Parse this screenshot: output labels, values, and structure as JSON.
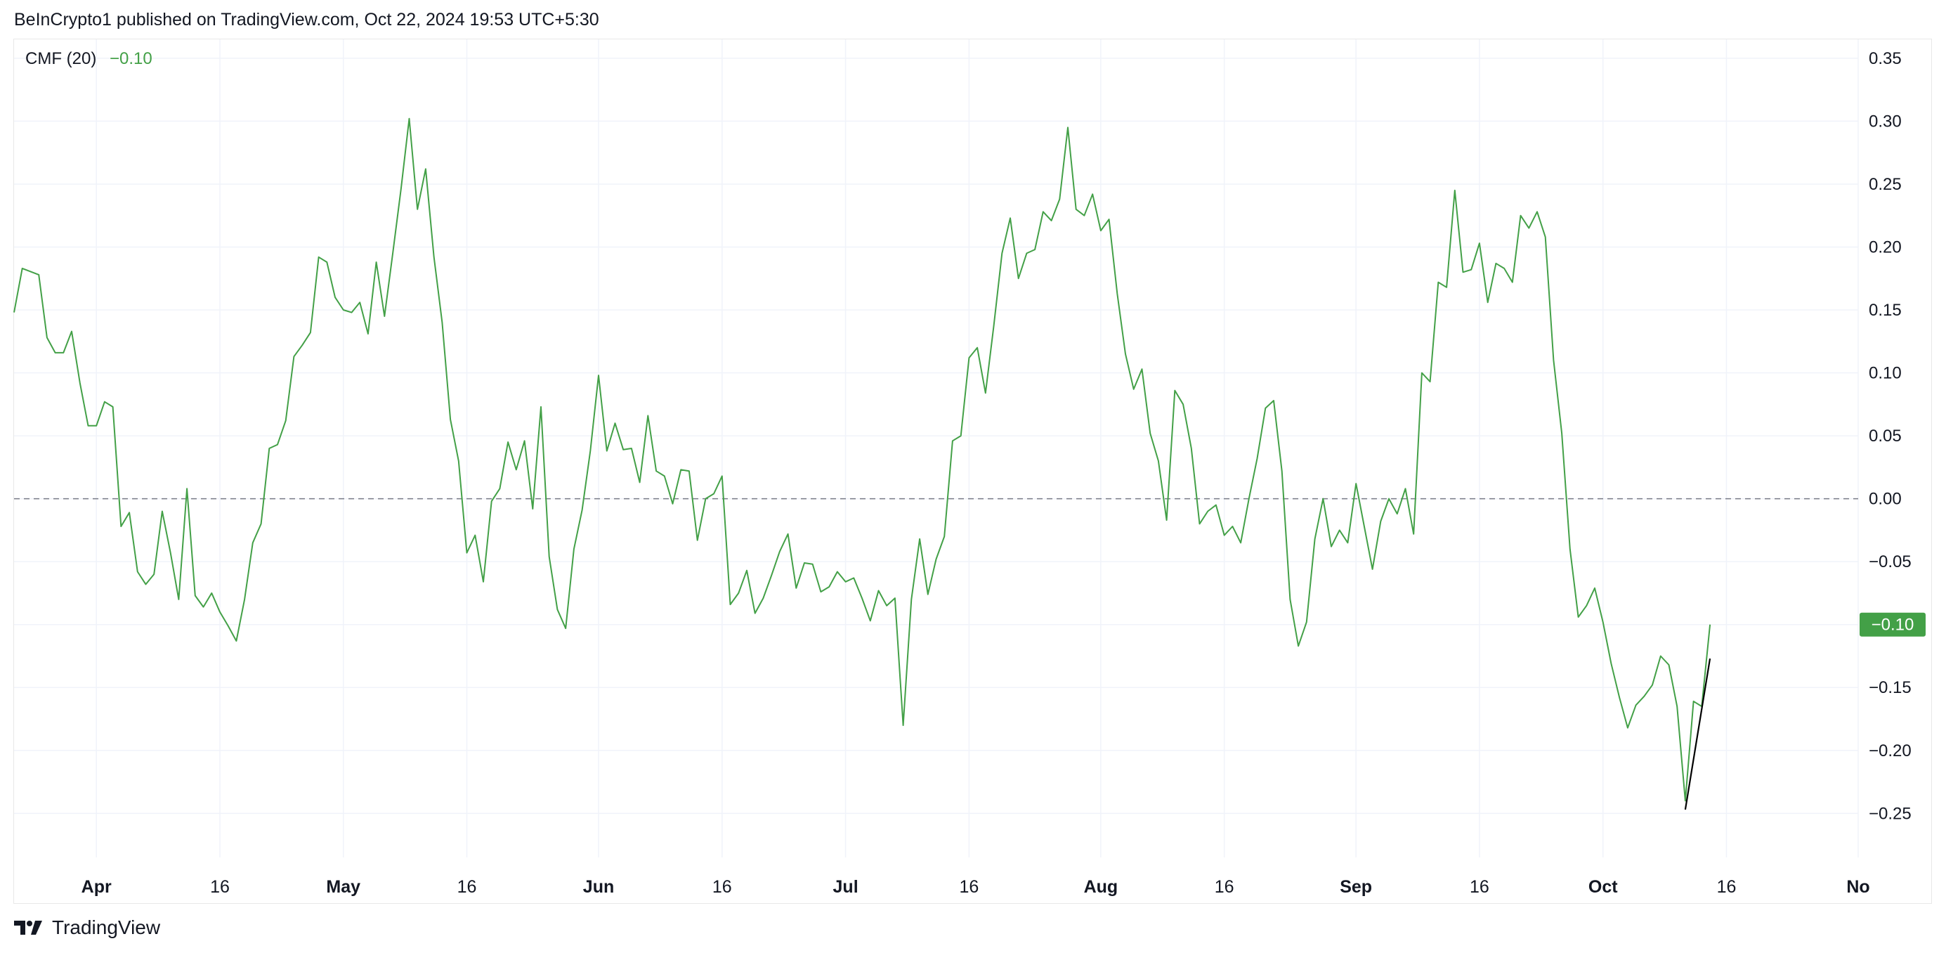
{
  "header": {
    "published": "BeInCrypto1 published on TradingView.com, Oct 22, 2024 19:53 UTC+5:30"
  },
  "legend": {
    "name": "CMF (20)",
    "value": "−0.10"
  },
  "footer": {
    "brand": "TradingView",
    "logo_icon": "tradingview-logo-icon"
  },
  "colors": {
    "series": "#43a047",
    "badge": "#43a047",
    "trendline": "#000000",
    "zero_line": "#787b86",
    "grid": "#f0f3fa"
  },
  "chart_data": {
    "type": "line",
    "title": "",
    "indicator": "CMF (20)",
    "last_value_label": "−0.10",
    "y_ticks": [
      "0.35",
      "0.30",
      "0.25",
      "0.20",
      "0.15",
      "0.10",
      "0.05",
      "0.00",
      "−0.05",
      "−0.10",
      "−0.15",
      "−0.20",
      "−0.25"
    ],
    "y_tick_values": [
      0.35,
      0.3,
      0.25,
      0.2,
      0.15,
      0.1,
      0.05,
      0.0,
      -0.05,
      -0.1,
      -0.15,
      -0.2,
      -0.25
    ],
    "ylim": [
      -0.285,
      0.365
    ],
    "x_ticks": [
      {
        "label": "Apr",
        "date": "2024-04-01",
        "major": true
      },
      {
        "label": "16",
        "date": "2024-04-16",
        "major": false
      },
      {
        "label": "May",
        "date": "2024-05-01",
        "major": true
      },
      {
        "label": "16",
        "date": "2024-05-16",
        "major": false
      },
      {
        "label": "Jun",
        "date": "2024-06-01",
        "major": true
      },
      {
        "label": "16",
        "date": "2024-06-16",
        "major": false
      },
      {
        "label": "Jul",
        "date": "2024-07-01",
        "major": true
      },
      {
        "label": "16",
        "date": "2024-07-16",
        "major": false
      },
      {
        "label": "Aug",
        "date": "2024-08-01",
        "major": true
      },
      {
        "label": "16",
        "date": "2024-08-16",
        "major": false
      },
      {
        "label": "Sep",
        "date": "2024-09-01",
        "major": true
      },
      {
        "label": "16",
        "date": "2024-09-16",
        "major": false
      },
      {
        "label": "Oct",
        "date": "2024-10-01",
        "major": true
      },
      {
        "label": "16",
        "date": "2024-10-16",
        "major": false
      },
      {
        "label": "No",
        "date": "2024-11-01",
        "major": true
      }
    ],
    "xlim": [
      "2024-03-22",
      "2024-11-01"
    ],
    "zero_line": 0.0,
    "series": [
      {
        "values": [
          [
            "2024-03-22",
            0.148
          ],
          [
            "2024-03-23",
            0.183
          ],
          [
            "2024-03-25",
            0.178
          ],
          [
            "2024-03-26",
            0.128
          ],
          [
            "2024-03-27",
            0.116
          ],
          [
            "2024-03-28",
            0.116
          ],
          [
            "2024-03-29",
            0.133
          ],
          [
            "2024-03-30",
            0.092
          ],
          [
            "2024-03-31",
            0.058
          ],
          [
            "2024-04-01",
            0.058
          ],
          [
            "2024-04-02",
            0.077
          ],
          [
            "2024-04-03",
            0.073
          ],
          [
            "2024-04-04",
            -0.022
          ],
          [
            "2024-04-05",
            -0.011
          ],
          [
            "2024-04-06",
            -0.058
          ],
          [
            "2024-04-07",
            -0.068
          ],
          [
            "2024-04-08",
            -0.06
          ],
          [
            "2024-04-09",
            -0.01
          ],
          [
            "2024-04-10",
            -0.043
          ],
          [
            "2024-04-11",
            -0.08
          ],
          [
            "2024-04-12",
            0.008
          ],
          [
            "2024-04-13",
            -0.077
          ],
          [
            "2024-04-14",
            -0.086
          ],
          [
            "2024-04-15",
            -0.075
          ],
          [
            "2024-04-16",
            -0.09
          ],
          [
            "2024-04-17",
            -0.101
          ],
          [
            "2024-04-18",
            -0.113
          ],
          [
            "2024-04-19",
            -0.08
          ],
          [
            "2024-04-20",
            -0.035
          ],
          [
            "2024-04-21",
            -0.02
          ],
          [
            "2024-04-22",
            0.04
          ],
          [
            "2024-04-23",
            0.043
          ],
          [
            "2024-04-24",
            0.062
          ],
          [
            "2024-04-25",
            0.113
          ],
          [
            "2024-04-26",
            0.122
          ],
          [
            "2024-04-27",
            0.132
          ],
          [
            "2024-04-28",
            0.192
          ],
          [
            "2024-04-29",
            0.188
          ],
          [
            "2024-04-30",
            0.16
          ],
          [
            "2024-05-01",
            0.15
          ],
          [
            "2024-05-02",
            0.148
          ],
          [
            "2024-05-03",
            0.156
          ],
          [
            "2024-05-04",
            0.131
          ],
          [
            "2024-05-05",
            0.188
          ],
          [
            "2024-05-06",
            0.145
          ],
          [
            "2024-05-07",
            0.195
          ],
          [
            "2024-05-08",
            0.246
          ],
          [
            "2024-05-09",
            0.302
          ],
          [
            "2024-05-10",
            0.23
          ],
          [
            "2024-05-11",
            0.262
          ],
          [
            "2024-05-12",
            0.192
          ],
          [
            "2024-05-13",
            0.14
          ],
          [
            "2024-05-14",
            0.063
          ],
          [
            "2024-05-15",
            0.03
          ],
          [
            "2024-05-16",
            -0.043
          ],
          [
            "2024-05-17",
            -0.029
          ],
          [
            "2024-05-18",
            -0.066
          ],
          [
            "2024-05-19",
            -0.002
          ],
          [
            "2024-05-20",
            0.008
          ],
          [
            "2024-05-21",
            0.045
          ],
          [
            "2024-05-22",
            0.023
          ],
          [
            "2024-05-23",
            0.046
          ],
          [
            "2024-05-24",
            -0.008
          ],
          [
            "2024-05-25",
            0.073
          ],
          [
            "2024-05-26",
            -0.046
          ],
          [
            "2024-05-27",
            -0.088
          ],
          [
            "2024-05-28",
            -0.103
          ],
          [
            "2024-05-29",
            -0.04
          ],
          [
            "2024-05-30",
            -0.009
          ],
          [
            "2024-05-31",
            0.038
          ],
          [
            "2024-06-01",
            0.098
          ],
          [
            "2024-06-02",
            0.038
          ],
          [
            "2024-06-03",
            0.06
          ],
          [
            "2024-06-04",
            0.039
          ],
          [
            "2024-06-05",
            0.04
          ],
          [
            "2024-06-06",
            0.013
          ],
          [
            "2024-06-07",
            0.066
          ],
          [
            "2024-06-08",
            0.022
          ],
          [
            "2024-06-09",
            0.018
          ],
          [
            "2024-06-10",
            -0.004
          ],
          [
            "2024-06-11",
            0.023
          ],
          [
            "2024-06-12",
            0.022
          ],
          [
            "2024-06-13",
            -0.033
          ],
          [
            "2024-06-14",
            0.0
          ],
          [
            "2024-06-15",
            0.004
          ],
          [
            "2024-06-16",
            0.018
          ],
          [
            "2024-06-17",
            -0.084
          ],
          [
            "2024-06-18",
            -0.075
          ],
          [
            "2024-06-19",
            -0.057
          ],
          [
            "2024-06-20",
            -0.091
          ],
          [
            "2024-06-21",
            -0.079
          ],
          [
            "2024-06-22",
            -0.061
          ],
          [
            "2024-06-23",
            -0.042
          ],
          [
            "2024-06-24",
            -0.028
          ],
          [
            "2024-06-25",
            -0.071
          ],
          [
            "2024-06-26",
            -0.051
          ],
          [
            "2024-06-27",
            -0.052
          ],
          [
            "2024-06-28",
            -0.074
          ],
          [
            "2024-06-29",
            -0.07
          ],
          [
            "2024-06-30",
            -0.058
          ],
          [
            "2024-07-01",
            -0.066
          ],
          [
            "2024-07-02",
            -0.063
          ],
          [
            "2024-07-03",
            -0.079
          ],
          [
            "2024-07-04",
            -0.097
          ],
          [
            "2024-07-05",
            -0.073
          ],
          [
            "2024-07-06",
            -0.085
          ],
          [
            "2024-07-07",
            -0.079
          ],
          [
            "2024-07-08",
            -0.18
          ],
          [
            "2024-07-09",
            -0.08
          ],
          [
            "2024-07-10",
            -0.032
          ],
          [
            "2024-07-11",
            -0.076
          ],
          [
            "2024-07-12",
            -0.048
          ],
          [
            "2024-07-13",
            -0.03
          ],
          [
            "2024-07-14",
            0.046
          ],
          [
            "2024-07-15",
            0.05
          ],
          [
            "2024-07-16",
            0.112
          ],
          [
            "2024-07-17",
            0.12
          ],
          [
            "2024-07-18",
            0.084
          ],
          [
            "2024-07-19",
            0.137
          ],
          [
            "2024-07-20",
            0.195
          ],
          [
            "2024-07-21",
            0.223
          ],
          [
            "2024-07-22",
            0.175
          ],
          [
            "2024-07-23",
            0.195
          ],
          [
            "2024-07-24",
            0.198
          ],
          [
            "2024-07-25",
            0.228
          ],
          [
            "2024-07-26",
            0.221
          ],
          [
            "2024-07-27",
            0.238
          ],
          [
            "2024-07-28",
            0.295
          ],
          [
            "2024-07-29",
            0.23
          ],
          [
            "2024-07-30",
            0.225
          ],
          [
            "2024-07-31",
            0.242
          ],
          [
            "2024-08-01",
            0.213
          ],
          [
            "2024-08-02",
            0.222
          ],
          [
            "2024-08-03",
            0.163
          ],
          [
            "2024-08-04",
            0.115
          ],
          [
            "2024-08-05",
            0.087
          ],
          [
            "2024-08-06",
            0.103
          ],
          [
            "2024-08-07",
            0.052
          ],
          [
            "2024-08-08",
            0.03
          ],
          [
            "2024-08-09",
            -0.017
          ],
          [
            "2024-08-10",
            0.086
          ],
          [
            "2024-08-11",
            0.075
          ],
          [
            "2024-08-12",
            0.04
          ],
          [
            "2024-08-13",
            -0.02
          ],
          [
            "2024-08-14",
            -0.01
          ],
          [
            "2024-08-15",
            -0.005
          ],
          [
            "2024-08-16",
            -0.029
          ],
          [
            "2024-08-17",
            -0.022
          ],
          [
            "2024-08-18",
            -0.035
          ],
          [
            "2024-08-19",
            0.0
          ],
          [
            "2024-08-20",
            0.032
          ],
          [
            "2024-08-21",
            0.072
          ],
          [
            "2024-08-22",
            0.078
          ],
          [
            "2024-08-23",
            0.022
          ],
          [
            "2024-08-24",
            -0.08
          ],
          [
            "2024-08-25",
            -0.117
          ],
          [
            "2024-08-26",
            -0.098
          ],
          [
            "2024-08-27",
            -0.032
          ],
          [
            "2024-08-28",
            0.0
          ],
          [
            "2024-08-29",
            -0.038
          ],
          [
            "2024-08-30",
            -0.025
          ],
          [
            "2024-08-31",
            -0.035
          ],
          [
            "2024-09-01",
            0.012
          ],
          [
            "2024-09-02",
            -0.022
          ],
          [
            "2024-09-03",
            -0.056
          ],
          [
            "2024-09-04",
            -0.018
          ],
          [
            "2024-09-05",
            0.0
          ],
          [
            "2024-09-06",
            -0.012
          ],
          [
            "2024-09-07",
            0.008
          ],
          [
            "2024-09-08",
            -0.028
          ],
          [
            "2024-09-09",
            0.1
          ],
          [
            "2024-09-10",
            0.093
          ],
          [
            "2024-09-11",
            0.172
          ],
          [
            "2024-09-12",
            0.168
          ],
          [
            "2024-09-13",
            0.245
          ],
          [
            "2024-09-14",
            0.18
          ],
          [
            "2024-09-15",
            0.182
          ],
          [
            "2024-09-16",
            0.203
          ],
          [
            "2024-09-17",
            0.156
          ],
          [
            "2024-09-18",
            0.187
          ],
          [
            "2024-09-19",
            0.183
          ],
          [
            "2024-09-20",
            0.172
          ],
          [
            "2024-09-21",
            0.225
          ],
          [
            "2024-09-22",
            0.215
          ],
          [
            "2024-09-23",
            0.228
          ],
          [
            "2024-09-24",
            0.208
          ],
          [
            "2024-09-25",
            0.11
          ],
          [
            "2024-09-26",
            0.052
          ],
          [
            "2024-09-27",
            -0.04
          ],
          [
            "2024-09-28",
            -0.094
          ],
          [
            "2024-09-29",
            -0.085
          ],
          [
            "2024-09-30",
            -0.071
          ],
          [
            "2024-10-01",
            -0.098
          ],
          [
            "2024-10-02",
            -0.131
          ],
          [
            "2024-10-03",
            -0.158
          ],
          [
            "2024-10-04",
            -0.182
          ],
          [
            "2024-10-05",
            -0.164
          ],
          [
            "2024-10-06",
            -0.157
          ],
          [
            "2024-10-07",
            -0.148
          ],
          [
            "2024-10-08",
            -0.125
          ],
          [
            "2024-10-09",
            -0.132
          ],
          [
            "2024-10-10",
            -0.165
          ],
          [
            "2024-10-11",
            -0.24
          ],
          [
            "2024-10-12",
            -0.161
          ],
          [
            "2024-10-13",
            -0.165
          ],
          [
            "2024-10-14",
            -0.1
          ]
        ]
      }
    ],
    "trendline": [
      [
        "2024-10-11",
        -0.247
      ],
      [
        "2024-10-14",
        -0.127
      ]
    ]
  }
}
